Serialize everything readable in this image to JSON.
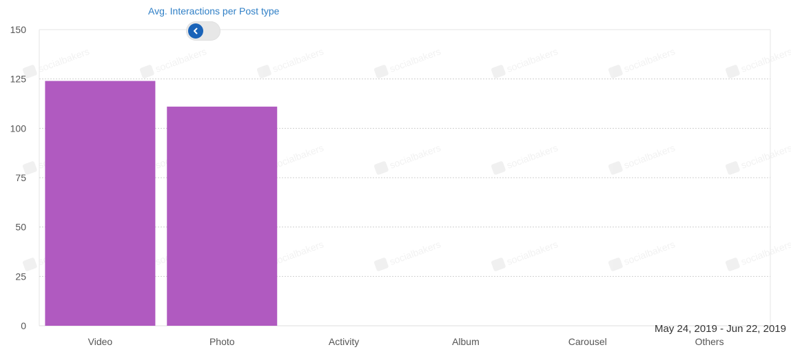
{
  "header": {
    "chart_title": "Avg. Interactions per Post type"
  },
  "watermark": {
    "text": "socialbakers"
  },
  "footer": {
    "date_range": "May 24, 2019 - Jun 22, 2019"
  },
  "colors": {
    "bar": "#b05ac0",
    "title_link": "#2f7fc6",
    "toggle_knob": "#1a63b8"
  },
  "icons": {
    "toggle": "chevron-left-icon"
  },
  "chart_data": {
    "type": "bar",
    "title": "Avg. Interactions per Post type",
    "categories": [
      "Video",
      "Photo",
      "Activity",
      "Album",
      "Carousel",
      "Others"
    ],
    "values": [
      124,
      111,
      0,
      0,
      0,
      0
    ],
    "ylim": [
      0,
      150
    ],
    "yticks": [
      0,
      25,
      50,
      75,
      100,
      125,
      150
    ],
    "grid": true,
    "xlabel": "",
    "ylabel": ""
  }
}
